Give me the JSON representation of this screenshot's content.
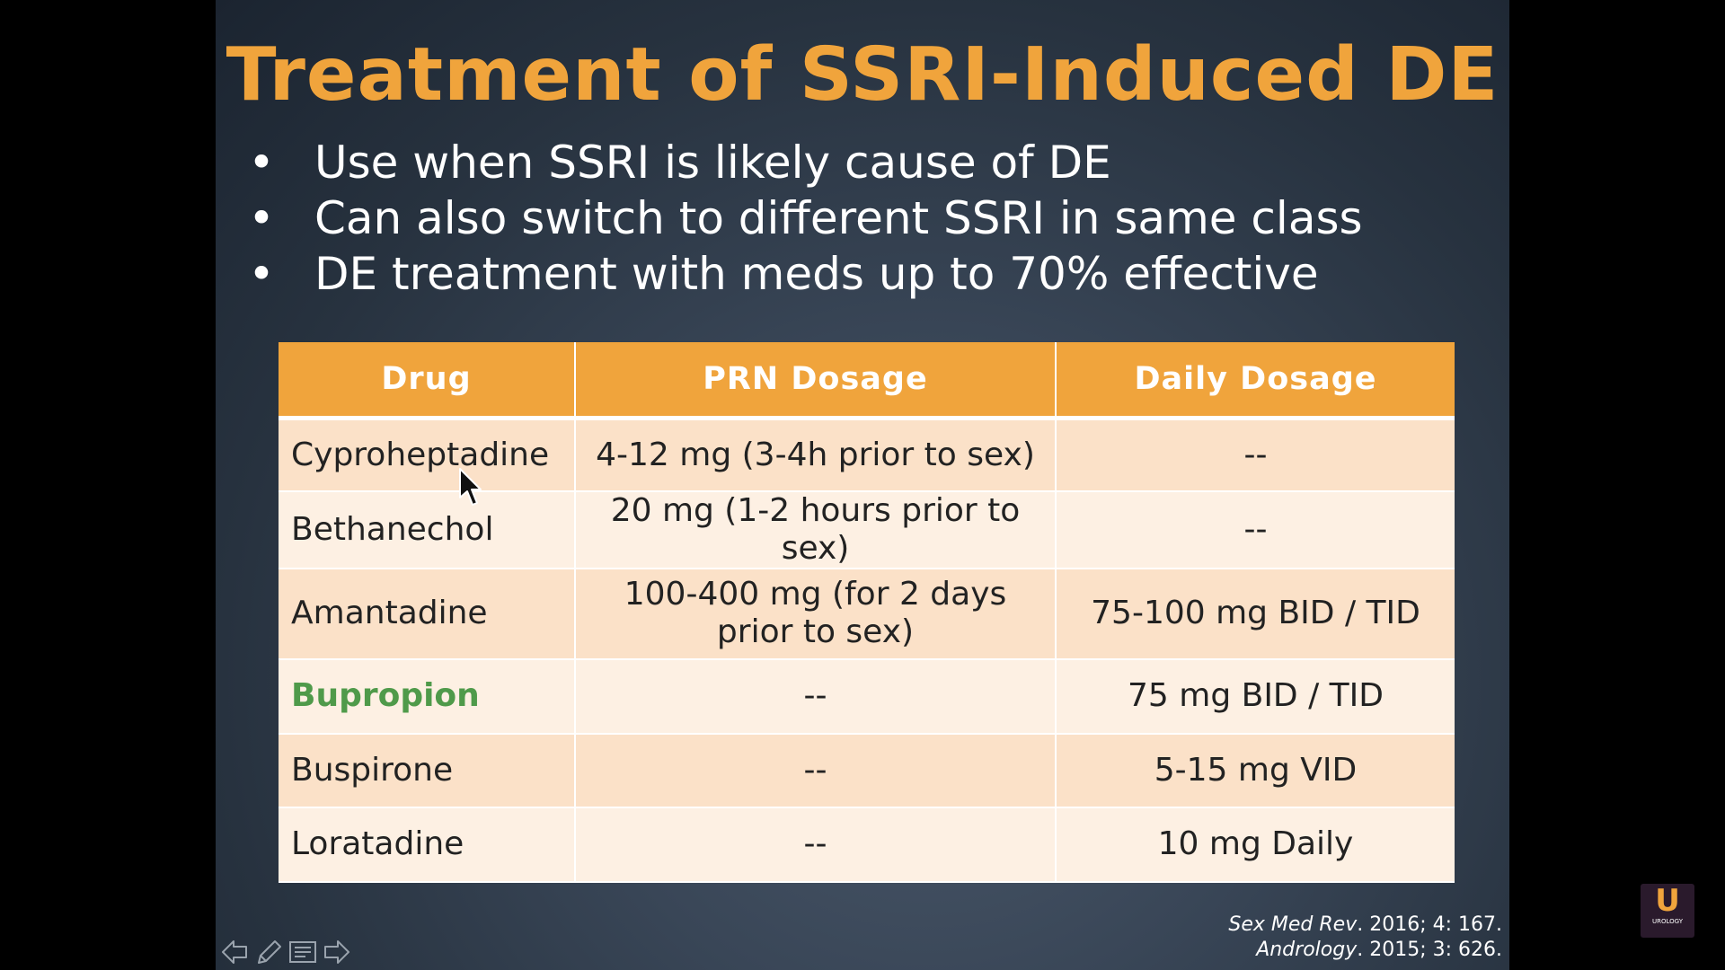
{
  "slide": {
    "title": "Treatment of SSRI-Induced DE",
    "bullets": [
      "Use when SSRI is likely cause of DE",
      "Can also switch to different SSRI in same class",
      "DE treatment with meds up to 70% effective"
    ],
    "bullet_glyph": "•"
  },
  "table": {
    "headers": [
      "Drug",
      "PRN Dosage",
      "Daily Dosage"
    ],
    "rows": [
      {
        "drug": "Cyproheptadine",
        "prn": "4-12 mg (3-4h prior to sex)",
        "daily": "--"
      },
      {
        "drug": "Bethanechol",
        "prn": "20 mg (1-2 hours prior to sex)",
        "daily": "--"
      },
      {
        "drug": "Amantadine",
        "prn": "100-400 mg (for 2 days prior to sex)",
        "daily": "75-100 mg BID / TID"
      },
      {
        "drug": "Bupropion",
        "prn": "--",
        "daily": "75 mg BID / TID"
      },
      {
        "drug": "Buspirone",
        "prn": "--",
        "daily": "5-15 mg VID"
      },
      {
        "drug": "Loratadine",
        "prn": "--",
        "daily": "10 mg Daily"
      }
    ],
    "highlight_row": "Bupropion"
  },
  "references": [
    {
      "journal": "Sex Med Rev",
      "rest": ". 2016; 4: 167."
    },
    {
      "journal": "Andrology",
      "rest": ". 2015; 3: 626."
    }
  ],
  "logo": {
    "letter": "U",
    "caption": "UROLOGY"
  },
  "colors": {
    "title": "#f0a43c",
    "header_bg": "#f0a43c",
    "row_odd": "#fbe1c8",
    "row_even": "#fdf0e3",
    "highlight": "#4f9a4a"
  },
  "icons": [
    "back-arrow-icon",
    "pen-icon",
    "menu-icon",
    "forward-arrow-icon",
    "mouse-pointer-icon"
  ]
}
